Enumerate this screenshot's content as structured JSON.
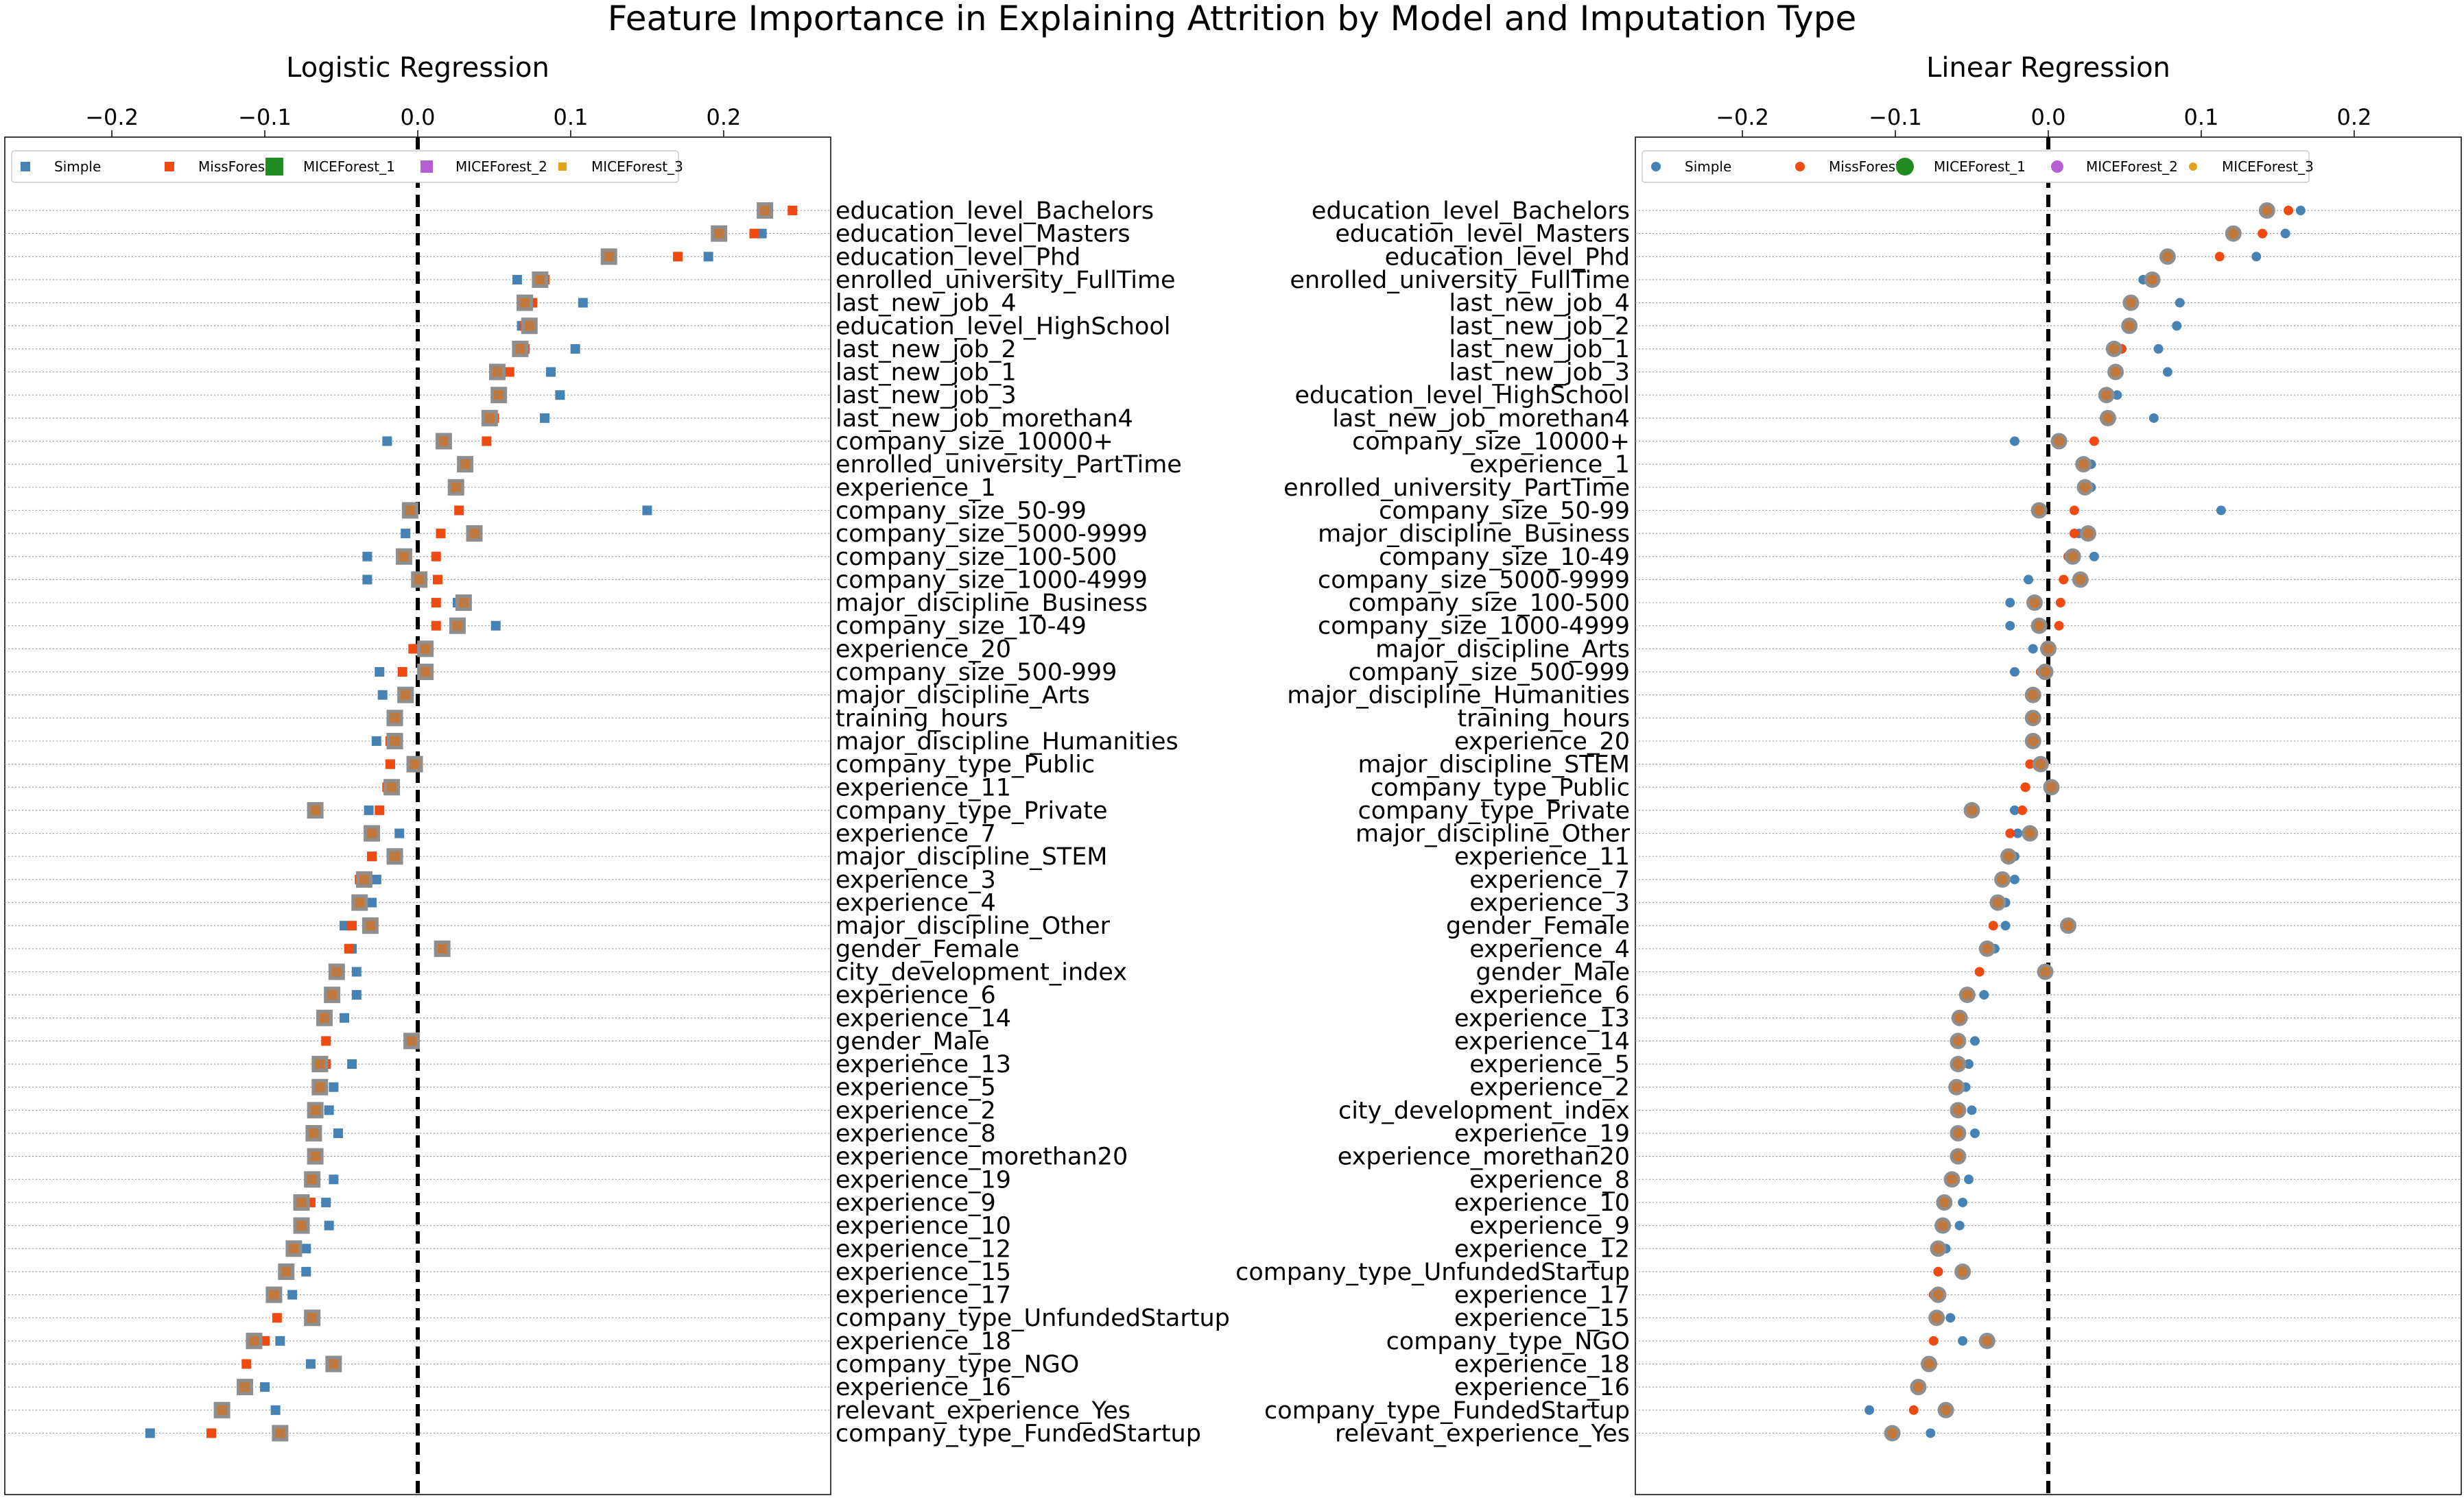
{
  "title": "Feature Importance in Explaining Attrition by Model and Imputation Type",
  "colors": {
    "Simple": "#4682b4",
    "MissForest": "#f04a13",
    "MICEForest_1": "#228b22",
    "MICEForest_2": "#b45fd3",
    "MICEForest_3": "#e3a21a",
    "overlap_fill": "#c0783c",
    "overlap_edge": "#8e8e8e"
  },
  "chart_data": [
    {
      "type": "scatter",
      "title": "Logistic Regression",
      "marker": "square",
      "xlim": [
        -0.27,
        0.27
      ],
      "xticks": [
        "−0.2",
        "−0.1",
        "0.0",
        "0.1",
        "0.2"
      ],
      "xtick_values": [
        -0.2,
        -0.1,
        0.0,
        0.1,
        0.2
      ],
      "grid": "horizontal dotted",
      "legend": "top",
      "legend_labels": [
        "Simple",
        "MissForest",
        "MICEForest_1",
        "MICEForest_2",
        "MICEForest_3"
      ],
      "features": [
        "education_level_Bachelors",
        "education_level_Masters",
        "education_level_Phd",
        "enrolled_university_FullTime",
        "last_new_job_4",
        "education_level_HighSchool",
        "last_new_job_2",
        "last_new_job_1",
        "last_new_job_3",
        "last_new_job_morethan4",
        "company_size_10000+",
        "enrolled_university_PartTime",
        "experience_1",
        "company_size_50-99",
        "company_size_5000-9999",
        "company_size_100-500",
        "company_size_1000-4999",
        "major_discipline_Business",
        "company_size_10-49",
        "experience_20",
        "company_size_500-999",
        "major_discipline_Arts",
        "training_hours",
        "major_discipline_Humanities",
        "company_type_Public",
        "experience_11",
        "company_type_Private",
        "experience_7",
        "major_discipline_STEM",
        "experience_3",
        "experience_4",
        "major_discipline_Other",
        "gender_Female",
        "city_development_index",
        "experience_6",
        "experience_14",
        "gender_Male",
        "experience_13",
        "experience_5",
        "experience_2",
        "experience_8",
        "experience_morethan20",
        "experience_19",
        "experience_9",
        "experience_10",
        "experience_12",
        "experience_15",
        "experience_17",
        "company_type_UnfundedStartup",
        "experience_18",
        "company_type_NGO",
        "experience_16",
        "relevant_experience_Yes",
        "company_type_FundedStartup"
      ],
      "series": [
        {
          "name": "Simple",
          "values": [
            0.228,
            0.225,
            0.19,
            0.065,
            0.108,
            0.068,
            0.103,
            0.087,
            0.093,
            0.083,
            -0.02,
            0.03,
            0.025,
            0.15,
            -0.008,
            -0.033,
            -0.033,
            0.026,
            0.051,
            0.002,
            -0.025,
            -0.023,
            -0.015,
            -0.027,
            -0.018,
            -0.02,
            -0.032,
            -0.012,
            -0.03,
            -0.027,
            -0.03,
            -0.048,
            -0.043,
            -0.04,
            -0.04,
            -0.048,
            -0.003,
            -0.043,
            -0.055,
            -0.058,
            -0.052,
            -0.067,
            -0.055,
            -0.06,
            -0.058,
            -0.073,
            -0.073,
            -0.082,
            -0.07,
            -0.09,
            -0.07,
            -0.1,
            -0.093,
            -0.175
          ]
        },
        {
          "name": "MissForest",
          "values": [
            0.245,
            0.22,
            0.17,
            0.083,
            0.075,
            0.07,
            0.07,
            0.06,
            0.055,
            0.05,
            0.045,
            0.03,
            0.025,
            0.027,
            0.015,
            0.012,
            0.013,
            0.012,
            0.012,
            -0.003,
            -0.01,
            -0.008,
            -0.015,
            -0.018,
            -0.018,
            -0.02,
            -0.025,
            -0.03,
            -0.03,
            -0.038,
            -0.04,
            -0.043,
            -0.045,
            -0.055,
            -0.058,
            -0.063,
            -0.06,
            -0.06,
            -0.065,
            -0.068,
            -0.068,
            -0.067,
            -0.07,
            -0.07,
            -0.077,
            -0.08,
            -0.088,
            -0.095,
            -0.092,
            -0.1,
            -0.112,
            -0.115,
            -0.128,
            -0.135
          ]
        },
        {
          "name": "MICEForest_1",
          "values": [
            0.227,
            0.197,
            0.125,
            0.08,
            0.07,
            0.073,
            0.067,
            0.052,
            0.053,
            0.047,
            0.017,
            0.031,
            0.025,
            -0.005,
            0.037,
            -0.009,
            0.001,
            0.03,
            0.026,
            0.005,
            0.005,
            -0.008,
            -0.015,
            -0.015,
            -0.002,
            -0.017,
            -0.067,
            -0.03,
            -0.015,
            -0.035,
            -0.038,
            -0.031,
            0.016,
            -0.053,
            -0.056,
            -0.061,
            -0.004,
            -0.064,
            -0.064,
            -0.067,
            -0.068,
            -0.067,
            -0.069,
            -0.076,
            -0.076,
            -0.081,
            -0.086,
            -0.094,
            -0.069,
            -0.107,
            -0.055,
            -0.113,
            -0.128,
            -0.09
          ]
        },
        {
          "name": "MICEForest_2",
          "values": [
            0.227,
            0.197,
            0.125,
            0.08,
            0.07,
            0.073,
            0.067,
            0.052,
            0.053,
            0.047,
            0.017,
            0.031,
            0.025,
            -0.005,
            0.037,
            -0.009,
            0.001,
            0.03,
            0.026,
            0.005,
            0.005,
            -0.008,
            -0.015,
            -0.015,
            -0.002,
            -0.017,
            -0.067,
            -0.03,
            -0.015,
            -0.035,
            -0.038,
            -0.031,
            0.016,
            -0.053,
            -0.056,
            -0.061,
            -0.004,
            -0.064,
            -0.064,
            -0.067,
            -0.068,
            -0.067,
            -0.069,
            -0.076,
            -0.076,
            -0.081,
            -0.086,
            -0.094,
            -0.069,
            -0.107,
            -0.055,
            -0.113,
            -0.128,
            -0.09
          ]
        },
        {
          "name": "MICEForest_3",
          "values": [
            0.227,
            0.197,
            0.125,
            0.08,
            0.07,
            0.073,
            0.067,
            0.052,
            0.053,
            0.047,
            0.017,
            0.031,
            0.025,
            -0.005,
            0.037,
            -0.009,
            0.001,
            0.03,
            0.026,
            0.005,
            0.005,
            -0.008,
            -0.015,
            -0.015,
            -0.002,
            -0.017,
            -0.067,
            -0.03,
            -0.015,
            -0.035,
            -0.038,
            -0.031,
            0.016,
            -0.053,
            -0.056,
            -0.061,
            -0.004,
            -0.064,
            -0.064,
            -0.067,
            -0.068,
            -0.067,
            -0.069,
            -0.076,
            -0.076,
            -0.081,
            -0.086,
            -0.094,
            -0.069,
            -0.107,
            -0.055,
            -0.113,
            -0.128,
            -0.09
          ]
        }
      ]
    },
    {
      "type": "scatter",
      "title": "Linear Regression",
      "marker": "circle",
      "xlim": [
        -0.27,
        0.27
      ],
      "xticks": [
        "−0.2",
        "−0.1",
        "0.0",
        "0.1",
        "0.2"
      ],
      "xtick_values": [
        -0.2,
        -0.1,
        0.0,
        0.1,
        0.2
      ],
      "grid": "horizontal dotted",
      "legend": "top",
      "legend_labels": [
        "Simple",
        "MissForest",
        "MICEForest_1",
        "MICEForest_2",
        "MICEForest_3"
      ],
      "features": [
        "education_level_Bachelors",
        "education_level_Masters",
        "education_level_Phd",
        "enrolled_university_FullTime",
        "last_new_job_4",
        "last_new_job_2",
        "last_new_job_1",
        "last_new_job_3",
        "education_level_HighSchool",
        "last_new_job_morethan4",
        "company_size_10000+",
        "experience_1",
        "enrolled_university_PartTime",
        "company_size_50-99",
        "major_discipline_Business",
        "company_size_10-49",
        "company_size_5000-9999",
        "company_size_100-500",
        "company_size_1000-4999",
        "major_discipline_Arts",
        "company_size_500-999",
        "major_discipline_Humanities",
        "training_hours",
        "experience_20",
        "major_discipline_STEM",
        "company_type_Public",
        "company_type_Private",
        "major_discipline_Other",
        "experience_11",
        "experience_7",
        "experience_3",
        "gender_Female",
        "experience_4",
        "gender_Male",
        "experience_6",
        "experience_13",
        "experience_14",
        "experience_5",
        "experience_2",
        "city_development_index",
        "experience_19",
        "experience_morethan20",
        "experience_8",
        "experience_10",
        "experience_9",
        "experience_12",
        "company_type_UnfundedStartup",
        "experience_17",
        "experience_15",
        "company_type_NGO",
        "experience_18",
        "experience_16",
        "company_type_FundedStartup",
        "relevant_experience_Yes"
      ],
      "series": [
        {
          "name": "Simple",
          "values": [
            0.165,
            0.155,
            0.136,
            0.062,
            0.086,
            0.084,
            0.072,
            0.078,
            0.045,
            0.069,
            -0.022,
            0.028,
            0.028,
            0.113,
            0.02,
            0.03,
            -0.013,
            -0.025,
            -0.025,
            -0.01,
            -0.022,
            -0.01,
            -0.01,
            -0.01,
            -0.008,
            -0.015,
            -0.022,
            -0.02,
            -0.022,
            -0.022,
            -0.028,
            -0.028,
            -0.035,
            -0.045,
            -0.042,
            -0.06,
            -0.048,
            -0.052,
            -0.054,
            -0.05,
            -0.048,
            -0.06,
            -0.052,
            -0.056,
            -0.058,
            -0.067,
            -0.072,
            -0.072,
            -0.064,
            -0.056,
            -0.077,
            -0.085,
            -0.117,
            -0.077
          ]
        },
        {
          "name": "MissForest",
          "values": [
            0.157,
            0.14,
            0.112,
            0.066,
            0.055,
            0.053,
            0.048,
            0.045,
            0.04,
            0.037,
            0.03,
            0.023,
            0.022,
            0.017,
            0.017,
            0.013,
            0.01,
            0.008,
            0.007,
            0.0,
            -0.005,
            -0.01,
            -0.01,
            -0.01,
            -0.012,
            -0.015,
            -0.017,
            -0.025,
            -0.028,
            -0.032,
            -0.035,
            -0.036,
            -0.038,
            -0.045,
            -0.052,
            -0.058,
            -0.058,
            -0.06,
            -0.06,
            -0.06,
            -0.06,
            -0.06,
            -0.065,
            -0.068,
            -0.07,
            -0.07,
            -0.072,
            -0.075,
            -0.075,
            -0.075,
            -0.078,
            -0.085,
            -0.088,
            -0.1
          ]
        },
        {
          "name": "MICEForest_1",
          "values": [
            0.143,
            0.121,
            0.078,
            0.068,
            0.054,
            0.053,
            0.043,
            0.044,
            0.038,
            0.039,
            0.007,
            0.023,
            0.024,
            -0.006,
            0.026,
            0.016,
            0.021,
            -0.009,
            -0.006,
            0.0,
            -0.002,
            -0.01,
            -0.01,
            -0.01,
            -0.005,
            0.002,
            -0.05,
            -0.012,
            -0.026,
            -0.03,
            -0.033,
            0.013,
            -0.04,
            -0.002,
            -0.053,
            -0.058,
            -0.059,
            -0.059,
            -0.06,
            -0.059,
            -0.059,
            -0.059,
            -0.063,
            -0.068,
            -0.069,
            -0.072,
            -0.056,
            -0.072,
            -0.073,
            -0.04,
            -0.078,
            -0.085,
            -0.067,
            -0.102
          ]
        },
        {
          "name": "MICEForest_2",
          "values": [
            0.143,
            0.121,
            0.078,
            0.068,
            0.054,
            0.053,
            0.043,
            0.044,
            0.038,
            0.039,
            0.007,
            0.023,
            0.024,
            -0.006,
            0.026,
            0.016,
            0.021,
            -0.009,
            -0.006,
            0.0,
            -0.002,
            -0.01,
            -0.01,
            -0.01,
            -0.005,
            0.002,
            -0.05,
            -0.012,
            -0.026,
            -0.03,
            -0.033,
            0.013,
            -0.04,
            -0.002,
            -0.053,
            -0.058,
            -0.059,
            -0.059,
            -0.06,
            -0.059,
            -0.059,
            -0.059,
            -0.063,
            -0.068,
            -0.069,
            -0.072,
            -0.056,
            -0.072,
            -0.073,
            -0.04,
            -0.078,
            -0.085,
            -0.067,
            -0.102
          ]
        },
        {
          "name": "MICEForest_3",
          "values": [
            0.143,
            0.121,
            0.078,
            0.068,
            0.054,
            0.053,
            0.043,
            0.044,
            0.038,
            0.039,
            0.007,
            0.023,
            0.024,
            -0.006,
            0.026,
            0.016,
            0.021,
            -0.009,
            -0.006,
            0.0,
            -0.002,
            -0.01,
            -0.01,
            -0.01,
            -0.005,
            0.002,
            -0.05,
            -0.012,
            -0.026,
            -0.03,
            -0.033,
            0.013,
            -0.04,
            -0.002,
            -0.053,
            -0.058,
            -0.059,
            -0.059,
            -0.06,
            -0.059,
            -0.059,
            -0.059,
            -0.063,
            -0.068,
            -0.069,
            -0.072,
            -0.056,
            -0.072,
            -0.073,
            -0.04,
            -0.078,
            -0.085,
            -0.067,
            -0.102
          ]
        }
      ]
    }
  ]
}
